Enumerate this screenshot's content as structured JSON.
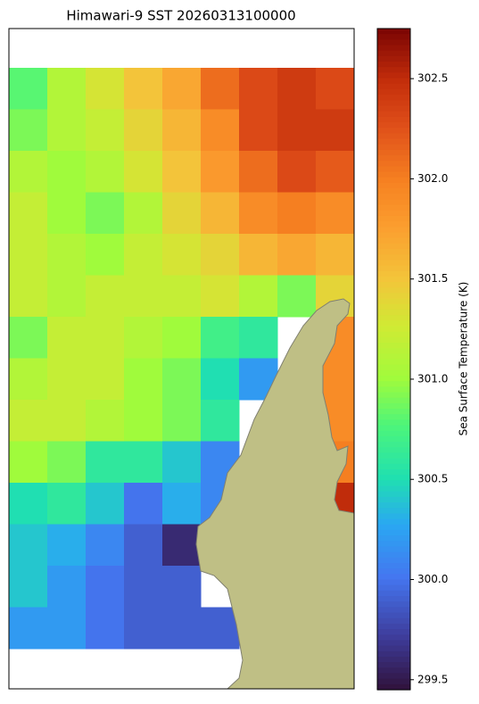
{
  "chart_data": {
    "type": "heatmap",
    "title": "Himawari-9 SST 20260313100000",
    "colorbar_label": "Sea Surface Temperature (K)",
    "colormap": "turbo",
    "clim": [
      299.45,
      302.75
    ],
    "cticks": [
      299.5,
      {
        "value": 300,
        "label": "300.0"
      },
      300.5,
      {
        "value": 301,
        "label": "301.0"
      },
      301.5,
      {
        "value": 302,
        "label": "302.0"
      },
      302.5
    ],
    "z": [
      [
        300.8,
        301.1,
        301.3,
        301.5,
        301.7,
        302.1,
        302.3,
        302.4,
        302.3
      ],
      [
        300.9,
        301.1,
        301.2,
        301.4,
        301.6,
        301.9,
        302.3,
        302.4,
        302.4
      ],
      [
        301.1,
        301.0,
        301.1,
        301.3,
        301.5,
        301.8,
        302.1,
        302.3,
        302.2
      ],
      [
        301.2,
        301.0,
        300.9,
        301.1,
        301.4,
        301.6,
        301.9,
        302.0,
        301.9
      ],
      [
        301.2,
        301.1,
        301.0,
        301.2,
        301.3,
        301.4,
        301.6,
        301.7,
        301.6
      ],
      [
        301.2,
        301.1,
        301.2,
        301.2,
        301.2,
        301.3,
        301.1,
        300.9,
        301.4
      ],
      [
        300.9,
        301.2,
        301.2,
        301.1,
        301.0,
        300.7,
        300.6,
        null,
        301.9
      ],
      [
        301.1,
        301.2,
        301.2,
        301.0,
        300.9,
        300.5,
        300.2,
        null,
        301.9
      ],
      [
        301.2,
        301.2,
        301.1,
        301.0,
        300.9,
        300.6,
        null,
        null,
        301.9
      ],
      [
        301.0,
        300.9,
        300.6,
        300.6,
        300.4,
        300.1,
        null,
        null,
        302.0
      ],
      [
        300.5,
        300.6,
        300.4,
        300.0,
        300.3,
        300.1,
        null,
        null,
        302.5
      ],
      [
        300.4,
        300.3,
        300.1,
        299.9,
        299.6,
        null,
        null,
        null,
        null
      ],
      [
        300.4,
        300.2,
        300.0,
        299.9,
        299.9,
        null,
        null,
        null,
        null
      ],
      [
        300.2,
        300.2,
        300.0,
        299.9,
        299.9,
        299.9,
        null,
        null,
        null
      ]
    ]
  }
}
